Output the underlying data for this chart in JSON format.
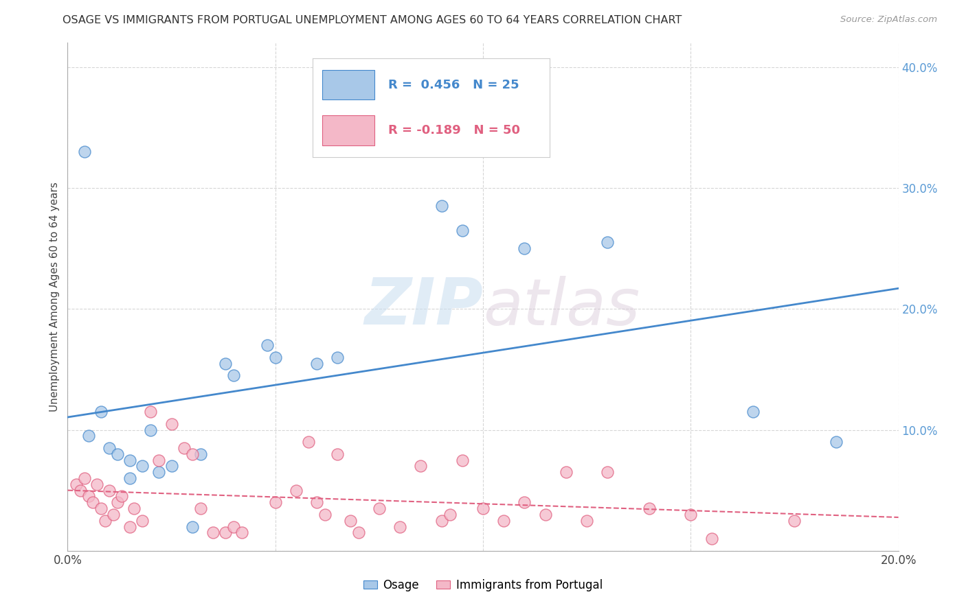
{
  "title": "OSAGE VS IMMIGRANTS FROM PORTUGAL UNEMPLOYMENT AMONG AGES 60 TO 64 YEARS CORRELATION CHART",
  "source": "Source: ZipAtlas.com",
  "ylabel": "Unemployment Among Ages 60 to 64 years",
  "xlim": [
    0.0,
    0.2
  ],
  "ylim": [
    0.0,
    0.42
  ],
  "xticks": [
    0.0,
    0.05,
    0.1,
    0.15,
    0.2
  ],
  "yticks": [
    0.0,
    0.1,
    0.2,
    0.3,
    0.4
  ],
  "watermark_zip": "ZIP",
  "watermark_atlas": "atlas",
  "legend_r1": "R =  0.456",
  "legend_n1": "N = 25",
  "legend_r2": "R = -0.189",
  "legend_n2": "N = 50",
  "osage_color": "#a8c8e8",
  "portugal_color": "#f4b8c8",
  "osage_line_color": "#4488cc",
  "portugal_line_color": "#e06080",
  "osage_scatter": [
    [
      0.004,
      0.33
    ],
    [
      0.005,
      0.095
    ],
    [
      0.008,
      0.115
    ],
    [
      0.01,
      0.085
    ],
    [
      0.012,
      0.08
    ],
    [
      0.015,
      0.075
    ],
    [
      0.015,
      0.06
    ],
    [
      0.018,
      0.07
    ],
    [
      0.02,
      0.1
    ],
    [
      0.022,
      0.065
    ],
    [
      0.025,
      0.07
    ],
    [
      0.03,
      0.02
    ],
    [
      0.032,
      0.08
    ],
    [
      0.038,
      0.155
    ],
    [
      0.04,
      0.145
    ],
    [
      0.048,
      0.17
    ],
    [
      0.05,
      0.16
    ],
    [
      0.06,
      0.155
    ],
    [
      0.065,
      0.16
    ],
    [
      0.09,
      0.285
    ],
    [
      0.095,
      0.265
    ],
    [
      0.11,
      0.25
    ],
    [
      0.13,
      0.255
    ],
    [
      0.165,
      0.115
    ],
    [
      0.185,
      0.09
    ]
  ],
  "portugal_scatter": [
    [
      0.002,
      0.055
    ],
    [
      0.003,
      0.05
    ],
    [
      0.004,
      0.06
    ],
    [
      0.005,
      0.045
    ],
    [
      0.006,
      0.04
    ],
    [
      0.007,
      0.055
    ],
    [
      0.008,
      0.035
    ],
    [
      0.009,
      0.025
    ],
    [
      0.01,
      0.05
    ],
    [
      0.011,
      0.03
    ],
    [
      0.012,
      0.04
    ],
    [
      0.013,
      0.045
    ],
    [
      0.015,
      0.02
    ],
    [
      0.016,
      0.035
    ],
    [
      0.018,
      0.025
    ],
    [
      0.02,
      0.115
    ],
    [
      0.022,
      0.075
    ],
    [
      0.025,
      0.105
    ],
    [
      0.028,
      0.085
    ],
    [
      0.03,
      0.08
    ],
    [
      0.032,
      0.035
    ],
    [
      0.035,
      0.015
    ],
    [
      0.038,
      0.015
    ],
    [
      0.04,
      0.02
    ],
    [
      0.042,
      0.015
    ],
    [
      0.05,
      0.04
    ],
    [
      0.055,
      0.05
    ],
    [
      0.058,
      0.09
    ],
    [
      0.06,
      0.04
    ],
    [
      0.062,
      0.03
    ],
    [
      0.065,
      0.08
    ],
    [
      0.068,
      0.025
    ],
    [
      0.07,
      0.015
    ],
    [
      0.075,
      0.035
    ],
    [
      0.08,
      0.02
    ],
    [
      0.085,
      0.07
    ],
    [
      0.09,
      0.025
    ],
    [
      0.092,
      0.03
    ],
    [
      0.095,
      0.075
    ],
    [
      0.1,
      0.035
    ],
    [
      0.105,
      0.025
    ],
    [
      0.11,
      0.04
    ],
    [
      0.115,
      0.03
    ],
    [
      0.12,
      0.065
    ],
    [
      0.125,
      0.025
    ],
    [
      0.13,
      0.065
    ],
    [
      0.14,
      0.035
    ],
    [
      0.15,
      0.03
    ],
    [
      0.155,
      0.01
    ],
    [
      0.175,
      0.025
    ]
  ],
  "background_color": "#ffffff",
  "grid_color": "#cccccc"
}
